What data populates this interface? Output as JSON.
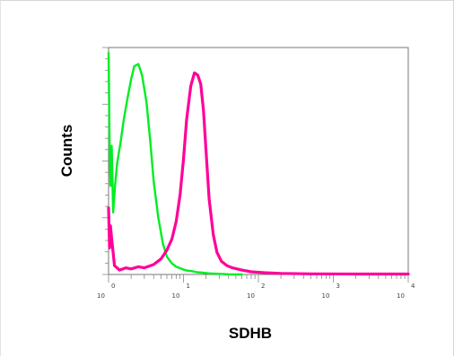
{
  "chart_data": {
    "type": "line",
    "title": "",
    "xlabel": "SDHB",
    "ylabel": "Counts",
    "x_scale": "log",
    "xlim": [
      1,
      10000
    ],
    "ylim": [
      0,
      100
    ],
    "x_tick_labels": [
      {
        "value": 1,
        "base": "10",
        "exp": "0"
      },
      {
        "value": 10,
        "base": "10",
        "exp": "1"
      },
      {
        "value": 100,
        "base": "10",
        "exp": "2"
      },
      {
        "value": 1000,
        "base": "10",
        "exp": "3"
      },
      {
        "value": 10000,
        "base": "10",
        "exp": "4"
      }
    ],
    "grid": false,
    "legend": "none",
    "series": [
      {
        "color": "#00ee22",
        "x": [
          1,
          1.03,
          1.06,
          1.1,
          1.15,
          1.22,
          1.3,
          1.45,
          1.6,
          1.8,
          2.0,
          2.2,
          2.5,
          2.8,
          3.2,
          3.6,
          4.0,
          4.6,
          5.3,
          6.0,
          7.0,
          8.0,
          9.5,
          11,
          13,
          15,
          18,
          22,
          30,
          40,
          60
        ],
        "y": [
          100,
          62,
          40,
          58,
          28,
          40,
          50,
          60,
          70,
          80,
          88,
          94,
          95,
          90,
          78,
          60,
          42,
          26,
          14,
          8,
          5,
          3.5,
          2.5,
          1.8,
          1.5,
          1.0,
          0.8,
          0.5,
          0.3,
          0.1,
          0
        ]
      },
      {
        "color": "#ff0099",
        "x": [
          1,
          1.03,
          1.06,
          1.1,
          1.2,
          1.4,
          1.7,
          2.0,
          2.5,
          3.0,
          4.0,
          5.0,
          6.0,
          7.0,
          8.0,
          9.0,
          10,
          11,
          12.5,
          14,
          15.5,
          17,
          18.5,
          20,
          22,
          25,
          28,
          32,
          38,
          45,
          60,
          80,
          120,
          200,
          500,
          2000,
          10000
        ],
        "y": [
          30,
          12,
          22,
          16,
          4,
          2,
          3,
          2.5,
          3.5,
          3,
          4.5,
          7,
          11,
          16,
          24,
          36,
          52,
          70,
          85,
          91,
          90,
          86,
          74,
          56,
          34,
          18,
          10,
          6,
          4,
          3,
          2,
          1.2,
          0.8,
          0.5,
          0.3,
          0.2,
          0.2
        ]
      }
    ]
  }
}
